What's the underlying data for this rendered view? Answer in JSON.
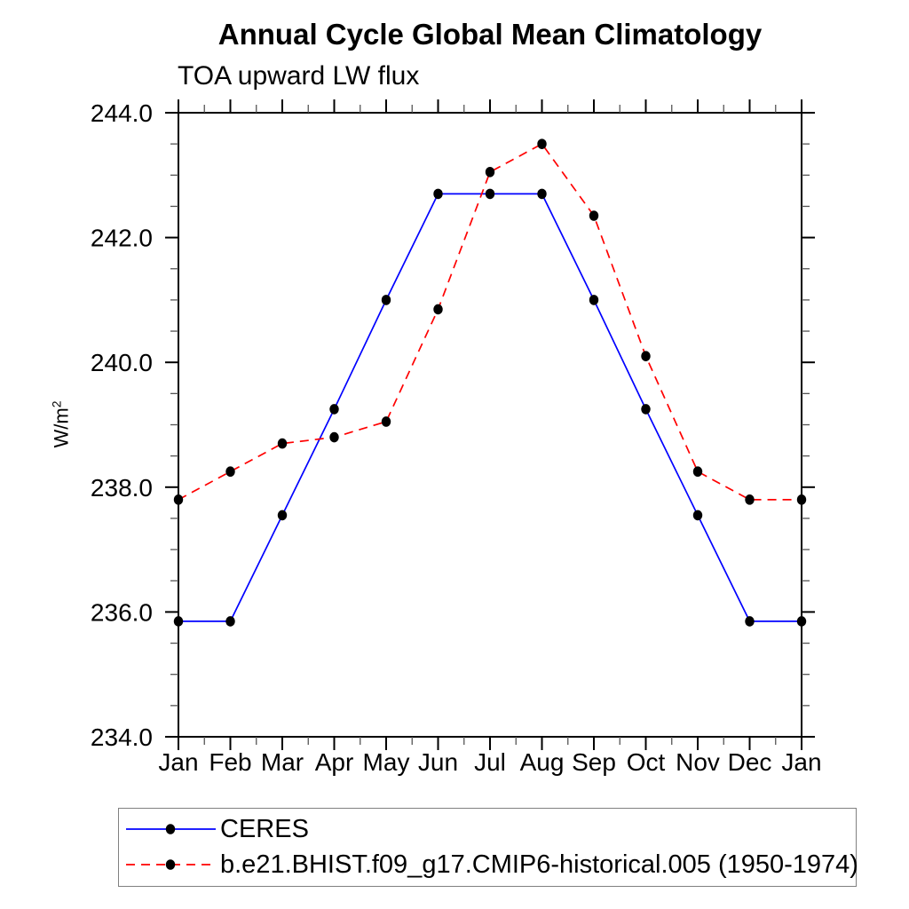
{
  "header": {
    "title": "Annual Cycle Global Mean Climatology",
    "subtitle": "TOA upward LW flux"
  },
  "axes": {
    "y_label_base": "W/m",
    "y_label_exponent": "2"
  },
  "legend": {
    "items": [
      {
        "label": "CERES",
        "color": "#0000ff",
        "line_style": "solid",
        "marker": "filled-circle",
        "marker_color": "#000000"
      },
      {
        "label": "b.e21.BHIST.f09_g17.CMIP6-historical.005 (1950-1974)",
        "color": "#ff0000",
        "line_style": "dashed",
        "marker": "filled-circle",
        "marker_color": "#000000"
      }
    ]
  },
  "chart_data": {
    "type": "line",
    "title": "Annual Cycle Global Mean Climatology",
    "subtitle": "TOA upward LW flux",
    "xlabel": "",
    "ylabel": "W/m^2",
    "categories": [
      "Jan",
      "Feb",
      "Mar",
      "Apr",
      "May",
      "Jun",
      "Jul",
      "Aug",
      "Sep",
      "Oct",
      "Nov",
      "Dec",
      "Jan"
    ],
    "series": [
      {
        "name": "CERES",
        "color": "#0000ff",
        "line_style": "solid",
        "marker": "filled-circle",
        "marker_color": "#000000",
        "values": [
          235.85,
          235.85,
          237.55,
          239.25,
          241.0,
          242.7,
          242.7,
          242.7,
          241.0,
          239.25,
          237.55,
          235.85,
          235.85
        ]
      },
      {
        "name": "b.e21.BHIST.f09_g17.CMIP6-historical.005 (1950-1974)",
        "color": "#ff0000",
        "line_style": "dashed",
        "marker": "filled-circle",
        "marker_color": "#000000",
        "values": [
          237.8,
          238.25,
          238.7,
          238.8,
          239.05,
          240.85,
          243.05,
          243.5,
          242.35,
          240.1,
          238.25,
          237.8,
          237.8
        ]
      }
    ],
    "ylim": [
      234.0,
      244.0
    ],
    "y_major_ticks": [
      234.0,
      236.0,
      238.0,
      240.0,
      242.0,
      244.0
    ],
    "y_tick_labels": [
      "234.0",
      "236.0",
      "238.0",
      "240.0",
      "242.0",
      "244.0"
    ],
    "y_minor_interval": 0.5,
    "x_minor_ticks_between_categories": true,
    "grid": false,
    "frame": "box",
    "ticks_direction": "out",
    "legend_position": "bottom-left"
  }
}
